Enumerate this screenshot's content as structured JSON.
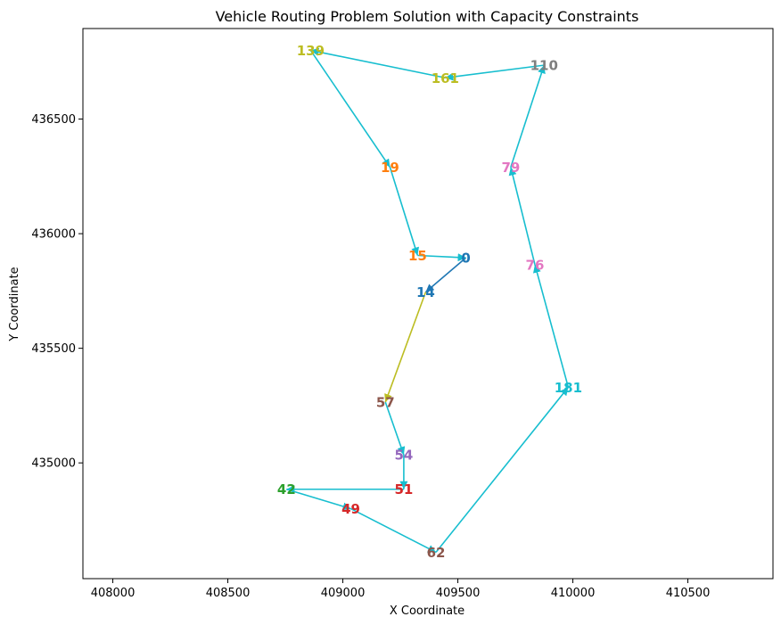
{
  "chart_data": {
    "type": "scatter",
    "title": "Vehicle Routing Problem Solution with Capacity Constraints",
    "xlabel": "X Coordinate",
    "ylabel": "Y Coordinate",
    "xlim": [
      407870,
      410870
    ],
    "ylim": [
      434495,
      436895
    ],
    "x_ticks": [
      408000,
      408500,
      409000,
      409500,
      410000,
      410500
    ],
    "y_ticks": [
      435000,
      435500,
      436000,
      436500
    ],
    "grid": false,
    "nodes": [
      {
        "id": "0",
        "label": "0",
        "x": 409535,
        "y": 435895,
        "color": "#1f77b4"
      },
      {
        "id": "14",
        "label": "14",
        "x": 409360,
        "y": 435745,
        "color": "#1f77b4"
      },
      {
        "id": "15",
        "label": "15",
        "x": 409325,
        "y": 435905,
        "color": "#ff7f0e"
      },
      {
        "id": "19",
        "label": "19",
        "x": 409205,
        "y": 436290,
        "color": "#ff7f0e"
      },
      {
        "id": "139",
        "label": "139",
        "x": 408860,
        "y": 436800,
        "color": "#bcbd22"
      },
      {
        "id": "161",
        "label": "161",
        "x": 409445,
        "y": 436680,
        "color": "#bcbd22"
      },
      {
        "id": "110",
        "label": "110",
        "x": 409875,
        "y": 436735,
        "color": "#7f7f7f"
      },
      {
        "id": "79",
        "label": "79",
        "x": 409730,
        "y": 436290,
        "color": "#e377c2"
      },
      {
        "id": "76",
        "label": "76",
        "x": 409835,
        "y": 435865,
        "color": "#e377c2"
      },
      {
        "id": "181",
        "label": "181",
        "x": 409980,
        "y": 435330,
        "color": "#17becf"
      },
      {
        "id": "62",
        "label": "62",
        "x": 409405,
        "y": 434610,
        "color": "#8c564b"
      },
      {
        "id": "49",
        "label": "49",
        "x": 409035,
        "y": 434800,
        "color": "#d62728"
      },
      {
        "id": "42",
        "label": "42",
        "x": 408755,
        "y": 434885,
        "color": "#2ca02c"
      },
      {
        "id": "51",
        "label": "51",
        "x": 409265,
        "y": 434885,
        "color": "#d62728"
      },
      {
        "id": "54",
        "label": "54",
        "x": 409265,
        "y": 435035,
        "color": "#9467bd"
      },
      {
        "id": "57",
        "label": "57",
        "x": 409185,
        "y": 435265,
        "color": "#8c564b"
      }
    ],
    "edges": [
      {
        "from": "0",
        "to": "14",
        "color": "#1f77b4"
      },
      {
        "from": "14",
        "to": "57",
        "color": "#bcbd22"
      },
      {
        "from": "57",
        "to": "54",
        "color": "#17becf"
      },
      {
        "from": "54",
        "to": "51",
        "color": "#17becf"
      },
      {
        "from": "51",
        "to": "42",
        "color": "#17becf"
      },
      {
        "from": "42",
        "to": "49",
        "color": "#17becf"
      },
      {
        "from": "49",
        "to": "62",
        "color": "#17becf"
      },
      {
        "from": "62",
        "to": "181",
        "color": "#17becf"
      },
      {
        "from": "181",
        "to": "76",
        "color": "#17becf"
      },
      {
        "from": "76",
        "to": "79",
        "color": "#17becf"
      },
      {
        "from": "79",
        "to": "110",
        "color": "#17becf"
      },
      {
        "from": "110",
        "to": "161",
        "color": "#17becf"
      },
      {
        "from": "161",
        "to": "139",
        "color": "#17becf"
      },
      {
        "from": "139",
        "to": "19",
        "color": "#17becf"
      },
      {
        "from": "19",
        "to": "15",
        "color": "#17becf"
      },
      {
        "from": "15",
        "to": "0",
        "color": "#17becf"
      }
    ]
  }
}
